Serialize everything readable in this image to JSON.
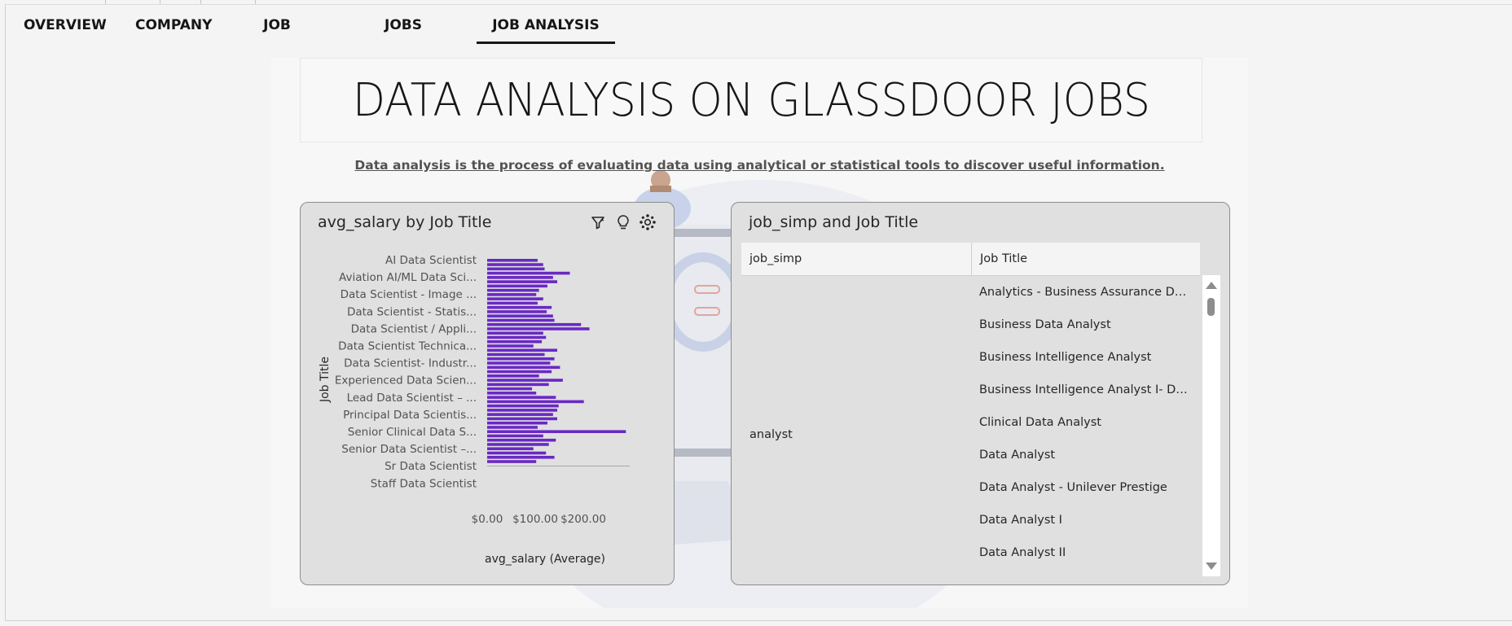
{
  "tabs": [
    {
      "label": "OVERVIEW",
      "active": false
    },
    {
      "label": "COMPANY",
      "active": false
    },
    {
      "label": "JOB TITLE",
      "active": false
    },
    {
      "label": "JOBS ANALYSIS",
      "active": false
    },
    {
      "label": "JOB ANALYSIS",
      "active": true
    }
  ],
  "header": {
    "title": "DATA ANALYSIS ON GLASSDOOR JOBS",
    "subtitle": "Data analysis is the process of evaluating data using analytical or statistical tools to discover useful information."
  },
  "bar_card": {
    "title": "avg_salary by Job Title",
    "icons": [
      "filter-icon",
      "lightbulb-icon",
      "settings-icon"
    ]
  },
  "chart_data": {
    "type": "bar",
    "orientation": "horizontal",
    "title": "avg_salary by Job Title",
    "xlabel": "avg_salary (Average)",
    "ylabel": "Job Title",
    "xlim": [
      0,
      200
    ],
    "x_ticks": [
      "$0.00",
      "$100.00",
      "$200.00"
    ],
    "visible_category_labels": [
      "AI Data Scientist",
      "Aviation AI/ML Data Sci...",
      "Data Scientist - Image ...",
      "Data Scientist - Statis...",
      "Data Scientist / Appli...",
      "Data Scientist Technica...",
      "Data Scientist- Industr...",
      "Experienced Data Scien...",
      "Lead Data Scientist – ...",
      "Principal Data Scientis...",
      "Senior Clinical Data S...",
      "Senior Data Scientist –...",
      "Sr Data Scientist",
      "Staff Data Scientist"
    ],
    "values": [
      72,
      80,
      82,
      118,
      94,
      100,
      86,
      74,
      70,
      80,
      72,
      92,
      85,
      94,
      96,
      134,
      146,
      80,
      84,
      78,
      66,
      100,
      82,
      96,
      90,
      104,
      92,
      74,
      108,
      88,
      64,
      70,
      98,
      138,
      102,
      100,
      94,
      100,
      86,
      72,
      198,
      80,
      98,
      88,
      66,
      84,
      96,
      70
    ],
    "bar_color": "#6929c4",
    "grid": false
  },
  "table_card": {
    "title": "job_simp and Job Title",
    "columns": [
      "job_simp",
      "Job Title"
    ],
    "group": "analyst",
    "rows": [
      "Analytics - Business Assurance Data ...",
      "Business Data Analyst",
      "Business Intelligence Analyst",
      "Business Intelligence Analyst I- Data...",
      "Clinical Data Analyst",
      "Data Analyst",
      "Data Analyst - Unilever Prestige",
      "Data Analyst I",
      "Data Analyst II"
    ]
  },
  "colors": {
    "accent": "#6929c4",
    "card_bg": "#e0e0e0",
    "page_bg": "#f4f4f4"
  }
}
